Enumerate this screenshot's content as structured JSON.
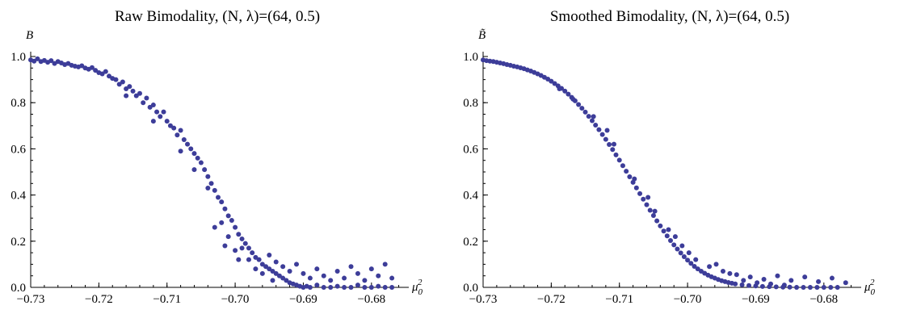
{
  "colors": {
    "point": "#3d3d99",
    "axis": "#000000",
    "background": "#ffffff"
  },
  "chart_data": [
    {
      "type": "scatter",
      "title": "Raw Bimodality, (N, λ)=(64, 0.5)",
      "xlabel": {
        "base": "μ",
        "sub": "0",
        "sup": "2"
      },
      "ylabel": "B",
      "xlim": [
        -0.73,
        -0.675
      ],
      "ylim": [
        0,
        1.0
      ],
      "xticks": [
        -0.73,
        -0.72,
        -0.71,
        -0.7,
        -0.69,
        -0.68
      ],
      "xtick_labels": [
        "−0.73",
        "−0.72",
        "−0.71",
        "−0.70",
        "−0.69",
        "−0.68"
      ],
      "yticks": [
        0,
        0.2,
        0.4,
        0.6,
        0.8,
        1.0
      ],
      "ytick_labels": [
        "0.0",
        "0.2",
        "0.4",
        "0.6",
        "0.8",
        "1.0"
      ],
      "grid": false,
      "series": [
        {
          "color": "#3d3d99",
          "points": [
            [
              -0.73,
              0.985
            ],
            [
              -0.7295,
              0.98
            ],
            [
              -0.729,
              0.99
            ],
            [
              -0.7285,
              0.978
            ],
            [
              -0.728,
              0.983
            ],
            [
              -0.7275,
              0.975
            ],
            [
              -0.727,
              0.982
            ],
            [
              -0.7265,
              0.97
            ],
            [
              -0.726,
              0.978
            ],
            [
              -0.7255,
              0.972
            ],
            [
              -0.725,
              0.965
            ],
            [
              -0.7245,
              0.97
            ],
            [
              -0.724,
              0.962
            ],
            [
              -0.7235,
              0.958
            ],
            [
              -0.723,
              0.955
            ],
            [
              -0.7225,
              0.96
            ],
            [
              -0.722,
              0.95
            ],
            [
              -0.7215,
              0.945
            ],
            [
              -0.721,
              0.952
            ],
            [
              -0.7205,
              0.94
            ],
            [
              -0.72,
              0.93
            ],
            [
              -0.7195,
              0.925
            ],
            [
              -0.719,
              0.935
            ],
            [
              -0.7185,
              0.915
            ],
            [
              -0.718,
              0.905
            ],
            [
              -0.7175,
              0.9
            ],
            [
              -0.717,
              0.88
            ],
            [
              -0.7165,
              0.89
            ],
            [
              -0.716,
              0.86
            ],
            [
              -0.7155,
              0.87
            ],
            [
              -0.715,
              0.85
            ],
            [
              -0.7145,
              0.83
            ],
            [
              -0.714,
              0.84
            ],
            [
              -0.7135,
              0.8
            ],
            [
              -0.713,
              0.82
            ],
            [
              -0.7125,
              0.78
            ],
            [
              -0.712,
              0.79
            ],
            [
              -0.7115,
              0.76
            ],
            [
              -0.711,
              0.74
            ],
            [
              -0.7105,
              0.76
            ],
            [
              -0.71,
              0.72
            ],
            [
              -0.7095,
              0.7
            ],
            [
              -0.709,
              0.69
            ],
            [
              -0.7085,
              0.66
            ],
            [
              -0.708,
              0.68
            ],
            [
              -0.7075,
              0.64
            ],
            [
              -0.707,
              0.62
            ],
            [
              -0.7065,
              0.6
            ],
            [
              -0.706,
              0.58
            ],
            [
              -0.7055,
              0.56
            ],
            [
              -0.705,
              0.54
            ],
            [
              -0.7045,
              0.51
            ],
            [
              -0.704,
              0.48
            ],
            [
              -0.7035,
              0.45
            ],
            [
              -0.703,
              0.42
            ],
            [
              -0.7025,
              0.39
            ],
            [
              -0.702,
              0.37
            ],
            [
              -0.7015,
              0.34
            ],
            [
              -0.701,
              0.31
            ],
            [
              -0.7005,
              0.29
            ],
            [
              -0.7,
              0.26
            ],
            [
              -0.6995,
              0.23
            ],
            [
              -0.699,
              0.21
            ],
            [
              -0.6985,
              0.19
            ],
            [
              -0.698,
              0.17
            ],
            [
              -0.6975,
              0.15
            ],
            [
              -0.697,
              0.13
            ],
            [
              -0.6965,
              0.12
            ],
            [
              -0.696,
              0.1
            ],
            [
              -0.6955,
              0.09
            ],
            [
              -0.695,
              0.08
            ],
            [
              -0.6945,
              0.07
            ],
            [
              -0.694,
              0.06
            ],
            [
              -0.6935,
              0.05
            ],
            [
              -0.693,
              0.04
            ],
            [
              -0.6925,
              0.03
            ],
            [
              -0.692,
              0.02
            ],
            [
              -0.6915,
              0.015
            ],
            [
              -0.691,
              0.01
            ],
            [
              -0.6905,
              0.005
            ],
            [
              -0.69,
              0.0
            ],
            [
              -0.6895,
              0.005
            ],
            [
              -0.689,
              0.0
            ],
            [
              -0.688,
              0.01
            ],
            [
              -0.687,
              0.0
            ],
            [
              -0.686,
              0.0
            ],
            [
              -0.685,
              0.005
            ],
            [
              -0.684,
              0.0
            ],
            [
              -0.683,
              0.0
            ],
            [
              -0.682,
              0.01
            ],
            [
              -0.681,
              0.0
            ],
            [
              -0.68,
              0.0
            ],
            [
              -0.679,
              0.005
            ],
            [
              -0.678,
              0.0
            ],
            [
              -0.677,
              0.0
            ],
            [
              -0.716,
              0.83
            ],
            [
              -0.712,
              0.72
            ],
            [
              -0.708,
              0.59
            ],
            [
              -0.706,
              0.51
            ],
            [
              -0.704,
              0.43
            ],
            [
              -0.702,
              0.28
            ],
            [
              -0.701,
              0.22
            ],
            [
              -0.7,
              0.16
            ],
            [
              -0.699,
              0.17
            ],
            [
              -0.698,
              0.12
            ],
            [
              -0.697,
              0.08
            ],
            [
              -0.696,
              0.06
            ],
            [
              -0.695,
              0.14
            ],
            [
              -0.694,
              0.11
            ],
            [
              -0.693,
              0.09
            ],
            [
              -0.692,
              0.07
            ],
            [
              -0.691,
              0.1
            ],
            [
              -0.69,
              0.06
            ],
            [
              -0.689,
              0.04
            ],
            [
              -0.688,
              0.08
            ],
            [
              -0.687,
              0.05
            ],
            [
              -0.686,
              0.03
            ],
            [
              -0.685,
              0.07
            ],
            [
              -0.684,
              0.04
            ],
            [
              -0.683,
              0.09
            ],
            [
              -0.682,
              0.06
            ],
            [
              -0.681,
              0.03
            ],
            [
              -0.68,
              0.08
            ],
            [
              -0.679,
              0.05
            ],
            [
              -0.678,
              0.1
            ],
            [
              -0.677,
              0.04
            ],
            [
              -0.703,
              0.26
            ],
            [
              -0.7015,
              0.18
            ],
            [
              -0.6995,
              0.12
            ],
            [
              -0.6945,
              0.03
            ]
          ]
        }
      ]
    },
    {
      "type": "scatter",
      "title": "Smoothed Bimodality, (N, λ)=(64, 0.5)",
      "xlabel": {
        "base": "μ",
        "sub": "0",
        "sup": "2"
      },
      "ylabel": "B̃",
      "xlim": [
        -0.73,
        -0.675
      ],
      "ylim": [
        0,
        1.0
      ],
      "xticks": [
        -0.73,
        -0.72,
        -0.71,
        -0.7,
        -0.69,
        -0.68
      ],
      "xtick_labels": [
        "−0.73",
        "−0.72",
        "−0.71",
        "−0.70",
        "−0.69",
        "−0.68"
      ],
      "yticks": [
        0,
        0.2,
        0.4,
        0.6,
        0.8,
        1.0
      ],
      "ytick_labels": [
        "0.0",
        "0.2",
        "0.4",
        "0.6",
        "0.8",
        "1.0"
      ],
      "grid": false,
      "series": [
        {
          "color": "#3d3d99",
          "points": [
            [
              -0.73,
              0.985
            ],
            [
              -0.7295,
              0.982
            ],
            [
              -0.729,
              0.98
            ],
            [
              -0.7285,
              0.978
            ],
            [
              -0.728,
              0.975
            ],
            [
              -0.7275,
              0.972
            ],
            [
              -0.727,
              0.969
            ],
            [
              -0.7265,
              0.965
            ],
            [
              -0.726,
              0.962
            ],
            [
              -0.7255,
              0.958
            ],
            [
              -0.725,
              0.955
            ],
            [
              -0.7245,
              0.951
            ],
            [
              -0.724,
              0.947
            ],
            [
              -0.7235,
              0.942
            ],
            [
              -0.723,
              0.937
            ],
            [
              -0.7225,
              0.931
            ],
            [
              -0.722,
              0.925
            ],
            [
              -0.7215,
              0.918
            ],
            [
              -0.721,
              0.91
            ],
            [
              -0.7205,
              0.902
            ],
            [
              -0.72,
              0.893
            ],
            [
              -0.7195,
              0.883
            ],
            [
              -0.719,
              0.873
            ],
            [
              -0.7185,
              0.862
            ],
            [
              -0.718,
              0.85
            ],
            [
              -0.7175,
              0.837
            ],
            [
              -0.717,
              0.823
            ],
            [
              -0.7165,
              0.808
            ],
            [
              -0.716,
              0.792
            ],
            [
              -0.7155,
              0.776
            ],
            [
              -0.715,
              0.759
            ],
            [
              -0.7145,
              0.741
            ],
            [
              -0.714,
              0.722
            ],
            [
              -0.7135,
              0.703
            ],
            [
              -0.713,
              0.683
            ],
            [
              -0.7125,
              0.662
            ],
            [
              -0.712,
              0.641
            ],
            [
              -0.7115,
              0.619
            ],
            [
              -0.711,
              0.597
            ],
            [
              -0.7105,
              0.574
            ],
            [
              -0.71,
              0.551
            ],
            [
              -0.7095,
              0.527
            ],
            [
              -0.709,
              0.503
            ],
            [
              -0.7085,
              0.479
            ],
            [
              -0.708,
              0.455
            ],
            [
              -0.7075,
              0.431
            ],
            [
              -0.707,
              0.406
            ],
            [
              -0.7065,
              0.382
            ],
            [
              -0.706,
              0.358
            ],
            [
              -0.7055,
              0.334
            ],
            [
              -0.705,
              0.311
            ],
            [
              -0.7045,
              0.288
            ],
            [
              -0.704,
              0.266
            ],
            [
              -0.7035,
              0.244
            ],
            [
              -0.703,
              0.223
            ],
            [
              -0.7025,
              0.203
            ],
            [
              -0.702,
              0.184
            ],
            [
              -0.7015,
              0.166
            ],
            [
              -0.701,
              0.149
            ],
            [
              -0.7005,
              0.133
            ],
            [
              -0.7,
              0.118
            ],
            [
              -0.6995,
              0.104
            ],
            [
              -0.699,
              0.091
            ],
            [
              -0.6985,
              0.08
            ],
            [
              -0.698,
              0.07
            ],
            [
              -0.6975,
              0.061
            ],
            [
              -0.697,
              0.053
            ],
            [
              -0.6965,
              0.046
            ],
            [
              -0.696,
              0.04
            ],
            [
              -0.6955,
              0.034
            ],
            [
              -0.695,
              0.029
            ],
            [
              -0.6945,
              0.025
            ],
            [
              -0.694,
              0.021
            ],
            [
              -0.6935,
              0.018
            ],
            [
              -0.693,
              0.015
            ],
            [
              -0.692,
              0.011
            ],
            [
              -0.691,
              0.008
            ],
            [
              -0.69,
              0.006
            ],
            [
              -0.689,
              0.004
            ],
            [
              -0.688,
              0.003
            ],
            [
              -0.687,
              0.002
            ],
            [
              -0.686,
              0.001
            ],
            [
              -0.685,
              0.001
            ],
            [
              -0.684,
              0.0
            ],
            [
              -0.683,
              0.0
            ],
            [
              -0.682,
              0.0
            ],
            [
              -0.681,
              0.0
            ],
            [
              -0.68,
              0.0
            ],
            [
              -0.679,
              0.0
            ],
            [
              -0.678,
              0.0
            ],
            [
              -0.7168,
              0.815
            ],
            [
              -0.7138,
              0.74
            ],
            [
              -0.7108,
              0.62
            ],
            [
              -0.7078,
              0.47
            ],
            [
              -0.7048,
              0.33
            ],
            [
              -0.7028,
              0.25
            ],
            [
              -0.7008,
              0.18
            ],
            [
              -0.6988,
              0.12
            ],
            [
              -0.6968,
              0.09
            ],
            [
              -0.6948,
              0.07
            ],
            [
              -0.6928,
              0.055
            ],
            [
              -0.6908,
              0.045
            ],
            [
              -0.6888,
              0.035
            ],
            [
              -0.6868,
              0.05
            ],
            [
              -0.6848,
              0.03
            ],
            [
              -0.6828,
              0.045
            ],
            [
              -0.6808,
              0.025
            ],
            [
              -0.6788,
              0.04
            ],
            [
              -0.6768,
              0.02
            ],
            [
              -0.7188,
              0.86
            ],
            [
              -0.7118,
              0.68
            ],
            [
              -0.7058,
              0.39
            ],
            [
              -0.7018,
              0.22
            ],
            [
              -0.6998,
              0.15
            ],
            [
              -0.6958,
              0.1
            ],
            [
              -0.6938,
              0.06
            ],
            [
              -0.6918,
              0.03
            ],
            [
              -0.6898,
              0.02
            ],
            [
              -0.6878,
              0.015
            ],
            [
              -0.6858,
              0.01
            ]
          ]
        }
      ]
    }
  ]
}
